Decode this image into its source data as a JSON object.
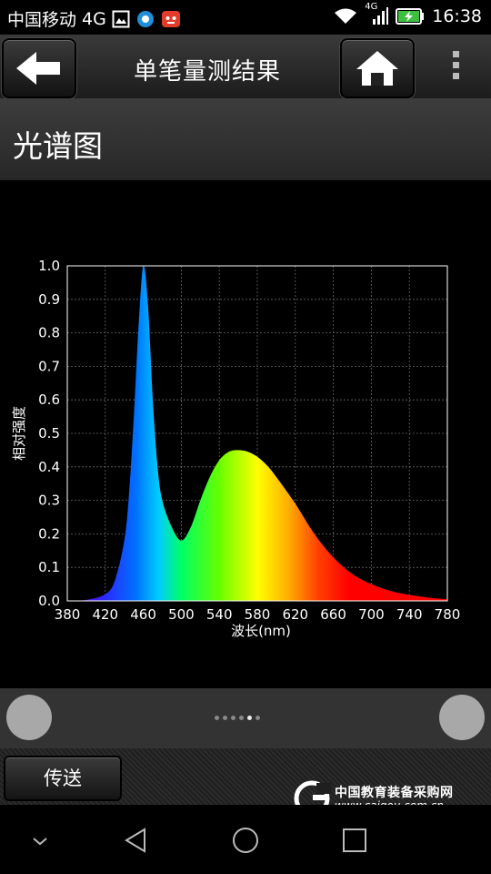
{
  "status_bar": {
    "carrier": "中国移动",
    "network": "4G",
    "network_small": "4G",
    "time": "16:38"
  },
  "app_bar": {
    "title": "单笔量测结果"
  },
  "section": {
    "title": "光谱图"
  },
  "chart_data": {
    "type": "area",
    "xlabel": "波长(nm)",
    "ylabel": "相对强度",
    "xlim": [
      380,
      780
    ],
    "ylim": [
      0,
      1.0
    ],
    "x_ticks": [
      "380",
      "420",
      "460",
      "500",
      "540",
      "580",
      "620",
      "660",
      "700",
      "740",
      "780"
    ],
    "y_ticks": [
      "0.0",
      "0.1",
      "0.2",
      "0.3",
      "0.4",
      "0.5",
      "0.6",
      "0.7",
      "0.8",
      "0.9",
      "1.0"
    ],
    "grid": true,
    "fill": "spectral gradient",
    "x": [
      380,
      400,
      420,
      430,
      440,
      445,
      450,
      455,
      460,
      465,
      470,
      475,
      480,
      490,
      500,
      510,
      520,
      530,
      540,
      550,
      560,
      570,
      580,
      590,
      600,
      620,
      640,
      660,
      680,
      700,
      720,
      740,
      760,
      780
    ],
    "y": [
      0.0,
      0.003,
      0.02,
      0.06,
      0.18,
      0.32,
      0.55,
      0.82,
      1.0,
      0.88,
      0.6,
      0.4,
      0.3,
      0.22,
      0.18,
      0.22,
      0.3,
      0.37,
      0.42,
      0.445,
      0.45,
      0.445,
      0.43,
      0.405,
      0.37,
      0.29,
      0.2,
      0.13,
      0.08,
      0.05,
      0.03,
      0.018,
      0.01,
      0.005
    ]
  },
  "pager": {
    "page_count": 6,
    "active_index": 4
  },
  "bottom_bar": {
    "send_label": "传送"
  },
  "watermark": {
    "name": "中国教育装备采购网",
    "url": "www.caigou.com.cn"
  }
}
